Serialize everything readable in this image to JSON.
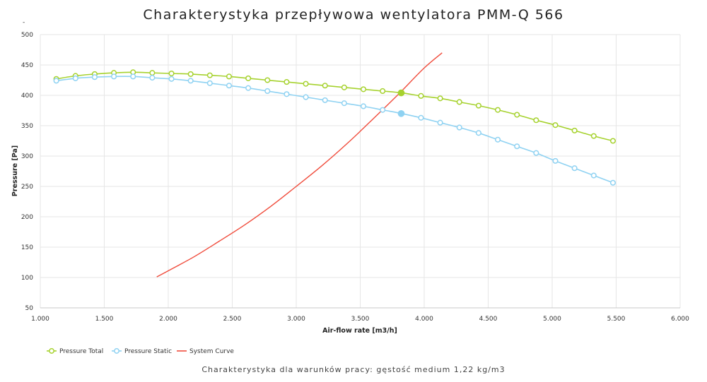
{
  "chart_data": {
    "type": "line",
    "title": "Charakterystyka przepływowa wentylatora PMM-Q 566",
    "xlabel": "Air-flow rate [m3/h]",
    "ylabel": "Pressure [Pa]",
    "xlim": [
      1.0,
      6.0
    ],
    "ylim": [
      50,
      500
    ],
    "xticks": [
      1.0,
      1.5,
      2.0,
      2.5,
      3.0,
      3.5,
      4.0,
      4.5,
      5.0,
      5.5,
      6.0
    ],
    "xtick_labels": [
      "1.000",
      "1.500",
      "2.000",
      "2.500",
      "3.000",
      "3.500",
      "4.000",
      "4.500",
      "5.000",
      "5.500",
      "6.000"
    ],
    "yticks": [
      50,
      100,
      150,
      200,
      250,
      300,
      350,
      400,
      450,
      500
    ],
    "ytick_labels": [
      "50",
      "100",
      "150",
      "200",
      "250",
      "300",
      "350",
      "400",
      "450",
      "500"
    ],
    "grid": true,
    "legend_position": "bottom-left",
    "series": [
      {
        "name": "Pressure Total",
        "color": "#a6d22e",
        "markers": true,
        "x": [
          1.125,
          1.275,
          1.425,
          1.575,
          1.725,
          1.875,
          2.025,
          2.175,
          2.325,
          2.475,
          2.625,
          2.775,
          2.925,
          3.075,
          3.225,
          3.375,
          3.525,
          3.675,
          3.825,
          3.975,
          4.125,
          4.275,
          4.425,
          4.575,
          4.725,
          4.875,
          5.025,
          5.175,
          5.325,
          5.475
        ],
        "y": [
          427,
          432,
          435,
          437,
          438,
          437,
          436,
          435,
          433,
          431,
          428,
          425,
          422,
          419,
          416,
          413,
          410,
          407,
          404,
          399,
          395,
          389,
          383,
          376,
          368,
          359,
          351,
          342,
          333,
          325
        ]
      },
      {
        "name": "Pressure Static",
        "color": "#8fd2f2",
        "markers": true,
        "x": [
          1.125,
          1.275,
          1.425,
          1.575,
          1.725,
          1.875,
          2.025,
          2.175,
          2.325,
          2.475,
          2.625,
          2.775,
          2.925,
          3.075,
          3.225,
          3.375,
          3.525,
          3.675,
          3.825,
          3.975,
          4.125,
          4.275,
          4.425,
          4.575,
          4.725,
          4.875,
          5.025,
          5.175,
          5.325,
          5.475
        ],
        "y": [
          424,
          428,
          430,
          431,
          431,
          429,
          427,
          424,
          420,
          416,
          412,
          407,
          402,
          397,
          392,
          387,
          382,
          376,
          370,
          363,
          355,
          347,
          338,
          327,
          316,
          305,
          292,
          280,
          268,
          256
        ]
      },
      {
        "name": "System Curve",
        "color": "#f04c3c",
        "markers": false,
        "x": [
          1.91,
          2.0,
          2.2,
          2.4,
          2.6,
          2.8,
          3.0,
          3.2,
          3.4,
          3.6,
          3.8,
          4.0,
          4.14
        ],
        "y": [
          101,
          111,
          134,
          160,
          187,
          217,
          250,
          284,
          321,
          361,
          402,
          445,
          470
        ]
      }
    ],
    "operating_points": [
      {
        "series": "Pressure Total",
        "x": 3.82,
        "y": 404
      },
      {
        "series": "Pressure Static",
        "x": 3.82,
        "y": 370
      }
    ],
    "caption": "Charakterystyka dla warunków pracy: gęstość medium 1,22 kg/m3",
    "stray_mark": "-"
  }
}
